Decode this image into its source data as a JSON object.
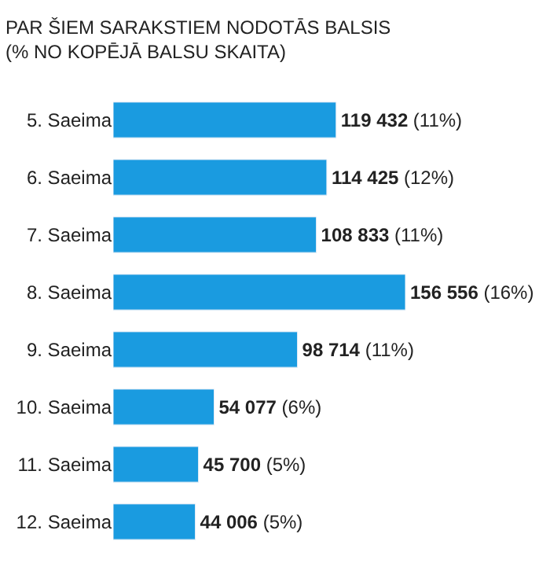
{
  "chart_data": {
    "type": "bar",
    "orientation": "horizontal",
    "title": "PAR ŠIEM SARAKSTIEM NODOTĀS BALSIS",
    "subtitle": "(% NO KOPĒJĀ BALSU SKAITA)",
    "categories": [
      "5. Saeima",
      "6. Saeima",
      "7. Saeima",
      "8. Saeima",
      "9. Saeima",
      "10. Saeima",
      "11. Saeima",
      "12. Saeima"
    ],
    "values": [
      119432,
      114425,
      108833,
      156556,
      98714,
      54077,
      45700,
      44006
    ],
    "value_labels": [
      "119 432 (11%)",
      "114 425 (12%)",
      "108 833 (11%)",
      "156 556 (16%)",
      "98 714 (11%)",
      "54 077 (6%)",
      "45 700 (5%)",
      "44 006 (5%)"
    ],
    "color": "#1a9be0"
  }
}
